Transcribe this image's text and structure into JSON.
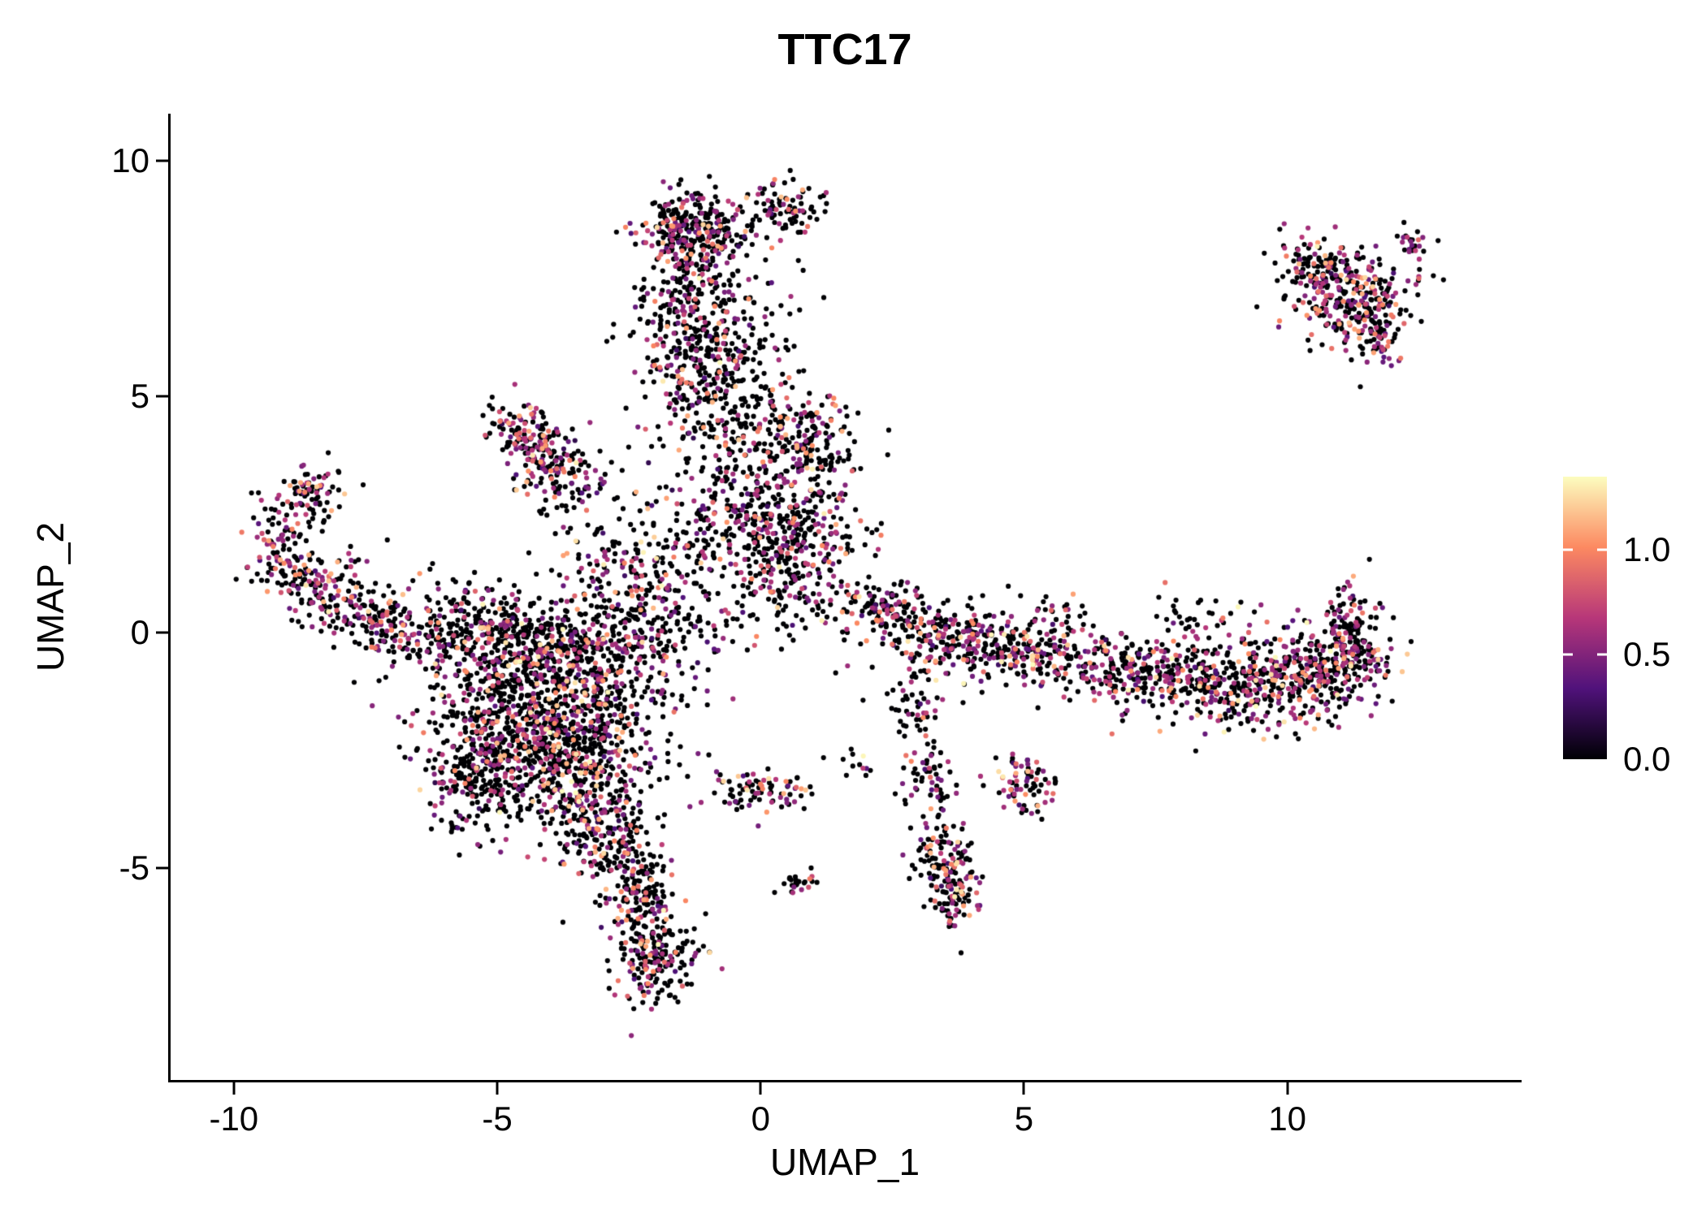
{
  "chart_data": {
    "type": "scatter",
    "title": "TTC17",
    "xlabel": "UMAP_1",
    "ylabel": "UMAP_2",
    "xlim": [
      -11.2,
      14.4
    ],
    "ylim": [
      -9.5,
      11.0
    ],
    "x_ticks": [
      -10,
      -5,
      0,
      5,
      10
    ],
    "y_ticks": [
      10,
      5,
      0,
      -5
    ],
    "grid": false,
    "legend": {
      "position": "right",
      "tick_labels": [
        "1.0",
        "0.5",
        "0.0"
      ],
      "tick_values": [
        1.0,
        0.5,
        0.0
      ],
      "range": [
        0,
        1.35
      ]
    },
    "colormap": {
      "name": "magma",
      "anchors": [
        {
          "t": 0.0,
          "color": "#000004"
        },
        {
          "t": 0.25,
          "color": "#50127b"
        },
        {
          "t": 0.5,
          "color": "#b73779"
        },
        {
          "t": 0.75,
          "color": "#fc8961"
        },
        {
          "t": 1.0,
          "color": "#fcfdbf"
        }
      ]
    },
    "note": "Dense single-cell UMAP scatter (~7800 cells) colored by TTC17 expression; point cloud is summarized as gaussian cluster components below.",
    "seed": 42,
    "point_radius_px": 3.1,
    "expression_model": {
      "pink": {
        "weight": 0.72,
        "mean": 0.55,
        "sd": 0.13,
        "min": 0.2,
        "max": 0.85
      },
      "orange": {
        "weight": 0.22,
        "min": 0.85,
        "max": 1.15
      },
      "cream": {
        "weight": 0.06,
        "min": 1.15,
        "max": 1.35
      }
    },
    "cluster_fields": [
      "x",
      "y",
      "sx",
      "sy",
      "n",
      "p_expressed"
    ],
    "clusters": [
      [
        -4.6,
        -1.6,
        0.95,
        0.95,
        700,
        0.32
      ],
      [
        -3.4,
        -2.7,
        0.75,
        0.85,
        420,
        0.3
      ],
      [
        -3.1,
        -0.7,
        0.85,
        0.65,
        320,
        0.3
      ],
      [
        -5.3,
        -3.1,
        0.5,
        0.6,
        200,
        0.28
      ],
      [
        -4.4,
        -0.2,
        0.7,
        0.45,
        200,
        0.3
      ],
      [
        -5.5,
        0.5,
        0.55,
        0.4,
        80,
        0.32
      ],
      [
        -3.3,
        -3.9,
        0.45,
        0.45,
        120,
        0.35
      ],
      [
        -2.7,
        -4.7,
        0.35,
        0.45,
        110,
        0.35
      ],
      [
        -2.2,
        -5.6,
        0.3,
        0.45,
        120,
        0.35
      ],
      [
        -2.0,
        -6.9,
        0.38,
        0.5,
        190,
        0.35
      ],
      [
        -1.25,
        8.55,
        0.5,
        0.42,
        260,
        0.32
      ],
      [
        0.45,
        9.0,
        0.38,
        0.28,
        90,
        0.3
      ],
      [
        -1.35,
        7.1,
        0.5,
        0.75,
        190,
        0.28
      ],
      [
        -1.0,
        5.8,
        0.7,
        0.6,
        210,
        0.3
      ],
      [
        -0.65,
        4.6,
        0.8,
        0.5,
        160,
        0.3
      ],
      [
        -0.2,
        6.9,
        0.5,
        0.9,
        70,
        0.28
      ],
      [
        0.55,
        1.95,
        0.7,
        0.5,
        260,
        0.35
      ],
      [
        0.9,
        3.9,
        0.5,
        0.55,
        190,
        0.4
      ],
      [
        -0.3,
        3.0,
        0.65,
        0.6,
        140,
        0.3
      ],
      [
        0.2,
        0.95,
        0.45,
        0.4,
        60,
        0.3
      ],
      [
        -4.55,
        4.3,
        0.3,
        0.3,
        90,
        0.5
      ],
      [
        -4.15,
        3.75,
        0.3,
        0.3,
        80,
        0.5
      ],
      [
        -3.75,
        3.2,
        0.4,
        0.35,
        90,
        0.45
      ],
      [
        -9.15,
        1.7,
        0.3,
        0.45,
        100,
        0.45
      ],
      [
        -8.6,
        2.9,
        0.35,
        0.4,
        90,
        0.45
      ],
      [
        -8.3,
        0.95,
        0.45,
        0.4,
        110,
        0.45
      ],
      [
        -7.3,
        0.35,
        0.5,
        0.35,
        120,
        0.4
      ],
      [
        -6.3,
        -0.2,
        0.55,
        0.35,
        110,
        0.35
      ],
      [
        2.6,
        0.35,
        0.4,
        0.35,
        90,
        0.35
      ],
      [
        3.6,
        -0.15,
        0.6,
        0.4,
        160,
        0.38
      ],
      [
        4.8,
        -0.4,
        0.6,
        0.35,
        160,
        0.38
      ],
      [
        6.2,
        -0.7,
        0.75,
        0.35,
        150,
        0.35
      ],
      [
        7.8,
        -0.95,
        0.8,
        0.45,
        220,
        0.38
      ],
      [
        9.3,
        -1.1,
        0.7,
        0.5,
        260,
        0.4
      ],
      [
        10.6,
        -0.95,
        0.5,
        0.5,
        230,
        0.42
      ],
      [
        11.3,
        -0.2,
        0.35,
        0.6,
        180,
        0.42
      ],
      [
        8.3,
        0.3,
        0.5,
        0.3,
        30,
        0.3
      ],
      [
        5.6,
        0.45,
        0.4,
        0.25,
        25,
        0.3
      ],
      [
        2.9,
        -1.5,
        0.3,
        0.45,
        55,
        0.3
      ],
      [
        3.2,
        -3.2,
        0.25,
        0.5,
        60,
        0.32
      ],
      [
        3.5,
        -4.8,
        0.28,
        0.45,
        100,
        0.4
      ],
      [
        3.75,
        -5.6,
        0.22,
        0.35,
        80,
        0.4
      ],
      [
        5.0,
        -3.2,
        0.3,
        0.35,
        75,
        0.45
      ],
      [
        0.0,
        -3.4,
        0.5,
        0.22,
        85,
        0.35
      ],
      [
        0.7,
        -5.3,
        0.15,
        0.12,
        25,
        0.35
      ],
      [
        1.8,
        -2.8,
        0.2,
        0.2,
        12,
        0.3
      ],
      [
        11.2,
        7.2,
        0.6,
        0.5,
        270,
        0.42
      ],
      [
        10.5,
        7.85,
        0.3,
        0.22,
        70,
        0.4
      ],
      [
        12.35,
        8.3,
        0.18,
        0.15,
        22,
        0.45
      ],
      [
        11.6,
        6.35,
        0.3,
        0.3,
        80,
        0.42
      ],
      [
        1.3,
        0.6,
        0.8,
        0.45,
        60,
        0.3
      ],
      [
        -1.9,
        0.4,
        0.75,
        0.6,
        160,
        0.3
      ],
      [
        -2.6,
        1.4,
        0.6,
        0.5,
        120,
        0.3
      ],
      [
        -1.2,
        2.3,
        0.8,
        0.8,
        110,
        0.28
      ],
      [
        2.0,
        0.75,
        0.35,
        0.25,
        30,
        0.3
      ]
    ]
  }
}
